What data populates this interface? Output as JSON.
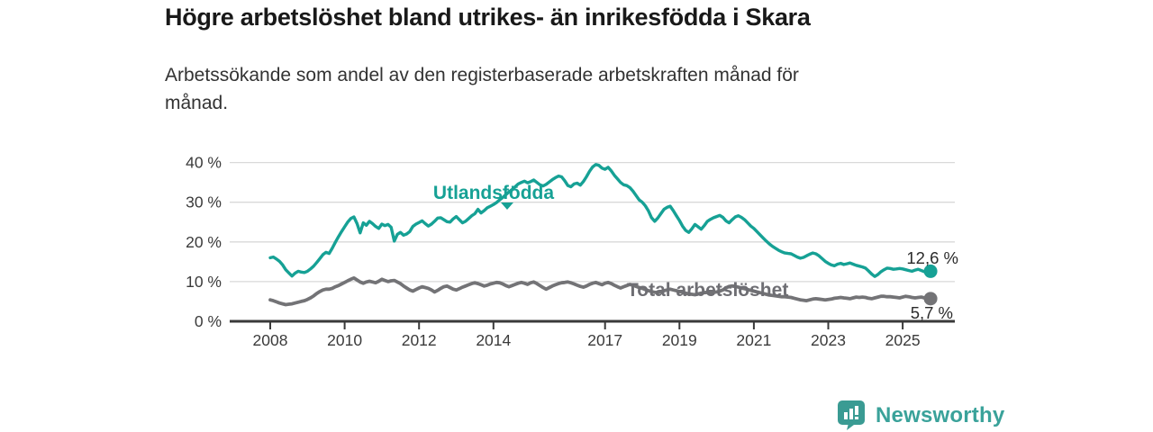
{
  "header": {
    "title": "Högre arbetslöshet bland utrikes- än inrikesfödda i Skara",
    "subtitle": "Arbetssökande som andel av den registerbaserade arbetskraften månad för månad.",
    "subtitle_lines": [
      "Arbetssökande som andel av den registerbaserade arbetskraften månad för",
      "månad."
    ]
  },
  "footer": {
    "brand": "Newsworthy",
    "logo_icon": "newsworthy-speech-bubble-bars-icon"
  },
  "colors": {
    "series_utlandsfodda": "#16a195",
    "series_total": "#737376",
    "grid": "#d9d9d9",
    "axis": "#3a3a3a",
    "tick_text": "#3b3b3b",
    "value_label_text": "#2b2b2b",
    "brand_teal": "#3a9b93"
  },
  "chart_data": {
    "type": "line",
    "title": "Högre arbetslöshet bland utrikes- än inrikesfödda i Skara",
    "subtitle": "Arbetssökande som andel av den registerbaserade arbetskraften månad för månad.",
    "xlabel": "",
    "ylabel": "",
    "x_start_year": 2008,
    "x_start_month": 1,
    "x_step_months": 1,
    "x_end_year": 2025,
    "x_end_month": 10,
    "ylim": [
      0,
      42
    ],
    "grid": "horizontal",
    "legend_position": "inline-labels",
    "y_ticks": [
      {
        "value": 0,
        "label": "0 %"
      },
      {
        "value": 10,
        "label": "10 %"
      },
      {
        "value": 20,
        "label": "20 %"
      },
      {
        "value": 30,
        "label": "30 %"
      },
      {
        "value": 40,
        "label": "40 %"
      }
    ],
    "x_ticks": [
      {
        "value": 2008,
        "label": "2008"
      },
      {
        "value": 2010,
        "label": "2010"
      },
      {
        "value": 2012,
        "label": "2012"
      },
      {
        "value": 2014,
        "label": "2014"
      },
      {
        "value": 2017,
        "label": "2017"
      },
      {
        "value": 2019,
        "label": "2019"
      },
      {
        "value": 2021,
        "label": "2021"
      },
      {
        "value": 2023,
        "label": "2023"
      },
      {
        "value": 2025,
        "label": "2025"
      }
    ],
    "series": [
      {
        "key": "utlandsfodda",
        "name": "Utlandsfödda",
        "color": "#16a195",
        "end_value": 12.6,
        "end_label": "12,6 %",
        "values": [
          16.0,
          16.2,
          15.7,
          15.1,
          14.2,
          13.0,
          12.2,
          11.4,
          12.1,
          12.6,
          12.4,
          12.3,
          12.6,
          13.2,
          13.9,
          14.8,
          15.8,
          16.8,
          17.4,
          17.1,
          18.4,
          19.9,
          21.3,
          22.6,
          23.8,
          25.0,
          25.9,
          26.3,
          24.6,
          22.3,
          24.8,
          24.2,
          25.2,
          24.6,
          23.9,
          23.4,
          24.5,
          24.1,
          24.4,
          23.7,
          20.2,
          21.9,
          22.4,
          21.7,
          22.0,
          22.6,
          23.9,
          24.5,
          24.9,
          25.3,
          24.6,
          24.0,
          24.5,
          25.2,
          26.0,
          26.1,
          25.6,
          25.1,
          25.0,
          25.8,
          26.4,
          25.6,
          24.8,
          25.2,
          25.9,
          26.6,
          27.1,
          28.2,
          27.3,
          27.9,
          28.6,
          29.0,
          29.4,
          29.9,
          30.6,
          31.2,
          31.9,
          32.6,
          33.2,
          33.9,
          34.6,
          35.0,
          35.3,
          34.9,
          35.2,
          35.6,
          35.0,
          34.4,
          34.1,
          34.5,
          35.1,
          35.7,
          36.2,
          36.6,
          36.4,
          35.4,
          34.2,
          33.9,
          34.6,
          34.8,
          34.3,
          35.2,
          36.4,
          37.8,
          38.9,
          39.5,
          39.3,
          38.6,
          38.3,
          38.8,
          37.9,
          36.8,
          35.9,
          35.0,
          34.4,
          34.2,
          33.7,
          32.8,
          31.7,
          30.6,
          30.0,
          29.1,
          27.8,
          26.1,
          25.2,
          26.0,
          27.1,
          28.2,
          28.7,
          29.0,
          27.9,
          26.6,
          25.4,
          24.0,
          22.9,
          22.4,
          23.3,
          24.4,
          23.8,
          23.2,
          24.1,
          25.2,
          25.7,
          26.1,
          26.4,
          26.7,
          26.2,
          25.3,
          24.8,
          25.6,
          26.3,
          26.6,
          26.2,
          25.6,
          24.8,
          24.0,
          23.4,
          22.6,
          21.8,
          21.0,
          20.2,
          19.5,
          18.9,
          18.4,
          17.9,
          17.5,
          17.2,
          17.1,
          17.0,
          16.6,
          16.2,
          15.9,
          16.1,
          16.5,
          16.9,
          17.2,
          17.0,
          16.5,
          15.8,
          15.1,
          14.6,
          14.2,
          14.0,
          14.4,
          14.6,
          14.3,
          14.5,
          14.7,
          14.4,
          14.1,
          13.9,
          13.7,
          13.4,
          12.7,
          11.9,
          11.3,
          11.8,
          12.5,
          13.0,
          13.4,
          13.3,
          13.1,
          13.2,
          13.3,
          13.2,
          13.0,
          12.8,
          12.6,
          12.9,
          13.1,
          12.8,
          12.5,
          12.7,
          12.6
        ]
      },
      {
        "key": "total",
        "name": "Total arbetslöshet",
        "color": "#737376",
        "end_value": 5.7,
        "end_label": "5,7 %",
        "values": [
          5.4,
          5.2,
          4.9,
          4.6,
          4.4,
          4.2,
          4.3,
          4.4,
          4.6,
          4.8,
          5.0,
          5.2,
          5.5,
          5.9,
          6.4,
          7.0,
          7.5,
          7.9,
          8.1,
          8.1,
          8.3,
          8.7,
          9.0,
          9.4,
          9.8,
          10.2,
          10.6,
          10.9,
          10.4,
          9.9,
          9.6,
          9.9,
          10.1,
          9.9,
          9.7,
          10.1,
          10.6,
          10.3,
          10.0,
          10.2,
          10.3,
          9.9,
          9.5,
          8.9,
          8.4,
          7.9,
          7.6,
          8.0,
          8.4,
          8.7,
          8.5,
          8.3,
          7.9,
          7.4,
          7.8,
          8.3,
          8.7,
          8.9,
          8.5,
          8.1,
          7.9,
          8.2,
          8.6,
          8.9,
          9.2,
          9.5,
          9.7,
          9.5,
          9.2,
          8.9,
          9.1,
          9.4,
          9.6,
          9.8,
          9.7,
          9.4,
          9.0,
          8.7,
          9.0,
          9.3,
          9.6,
          9.8,
          9.6,
          9.3,
          9.7,
          9.9,
          9.5,
          9.0,
          8.5,
          8.1,
          8.5,
          8.9,
          9.2,
          9.5,
          9.7,
          9.8,
          9.9,
          9.7,
          9.4,
          9.1,
          8.8,
          8.6,
          8.9,
          9.3,
          9.6,
          9.8,
          9.5,
          9.2,
          9.6,
          9.8,
          9.5,
          9.1,
          8.7,
          8.4,
          8.7,
          9.0,
          9.3,
          9.1,
          8.8,
          8.5,
          8.3,
          8.0,
          7.7,
          7.5,
          7.3,
          7.2,
          7.4,
          7.7,
          7.9,
          8.1,
          7.9,
          7.7,
          7.5,
          7.3,
          7.1,
          6.9,
          6.8,
          6.7,
          6.9,
          7.1,
          7.2,
          7.3,
          7.2,
          7.3,
          7.4,
          7.6,
          7.9,
          8.4,
          8.8,
          8.9,
          8.8,
          8.6,
          8.4,
          8.2,
          8.0,
          7.8,
          7.6,
          7.4,
          7.2,
          7.0,
          6.8,
          6.6,
          6.5,
          6.4,
          6.3,
          6.2,
          6.2,
          6.1,
          6.0,
          5.8,
          5.6,
          5.4,
          5.3,
          5.2,
          5.4,
          5.6,
          5.7,
          5.6,
          5.5,
          5.4,
          5.5,
          5.6,
          5.8,
          5.9,
          6.0,
          5.9,
          5.8,
          5.7,
          5.9,
          6.1,
          6.0,
          6.1,
          6.0,
          5.8,
          5.7,
          5.9,
          6.1,
          6.3,
          6.3,
          6.2,
          6.2,
          6.1,
          6.0,
          5.9,
          6.1,
          6.3,
          6.2,
          6.0,
          5.9,
          6.0,
          6.1,
          5.9,
          5.8,
          5.7
        ]
      }
    ]
  }
}
